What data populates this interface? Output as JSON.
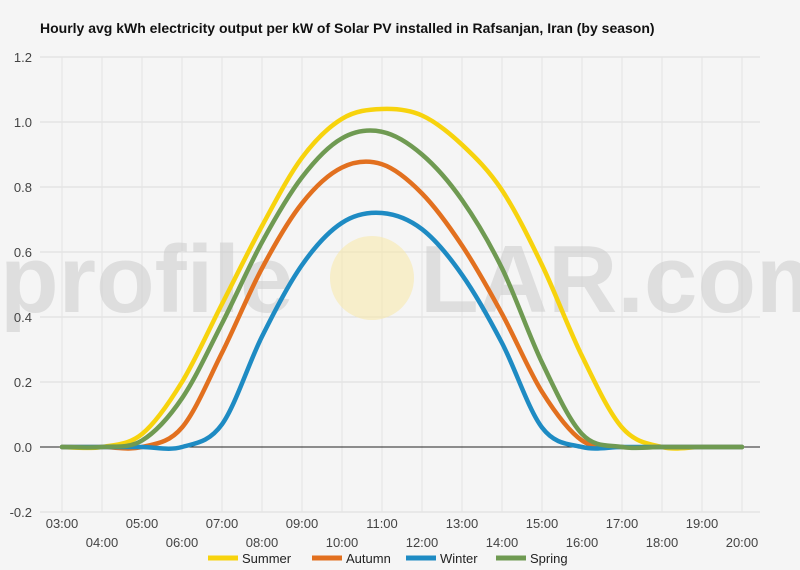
{
  "watermark": {
    "left": "profile",
    "right": "LAR.com"
  },
  "chart_data": {
    "type": "line",
    "title": "Hourly avg kWh electricity output per kW of Solar PV installed in Rafsanjan, Iran (by season)",
    "xlabel": "",
    "ylabel": "",
    "x": [
      "03:00",
      "04:00",
      "05:00",
      "06:00",
      "07:00",
      "08:00",
      "09:00",
      "10:00",
      "11:00",
      "12:00",
      "13:00",
      "14:00",
      "15:00",
      "16:00",
      "17:00",
      "18:00",
      "19:00",
      "20:00"
    ],
    "ylim": [
      -0.2,
      1.2
    ],
    "yticks": [
      1.2,
      1.0,
      0.8,
      0.6,
      0.4,
      0.2,
      0.0,
      -0.2
    ],
    "ytick_labels": [
      "1.2",
      "1.0",
      "0.8",
      "0.6",
      "0.4",
      "0.2",
      "0.0",
      "-0.2"
    ],
    "grid": true,
    "legend_position": "bottom",
    "series": [
      {
        "name": "Summer",
        "color": "#f7d30d",
        "values": [
          0,
          0,
          0.04,
          0.2,
          0.44,
          0.68,
          0.89,
          1.01,
          1.04,
          1.02,
          0.93,
          0.79,
          0.56,
          0.28,
          0.06,
          0,
          0,
          0
        ]
      },
      {
        "name": "Autumn",
        "color": "#e2701f",
        "values": [
          0,
          0,
          0,
          0.06,
          0.29,
          0.55,
          0.75,
          0.86,
          0.87,
          0.78,
          0.62,
          0.41,
          0.17,
          0.02,
          0,
          0,
          0,
          0
        ]
      },
      {
        "name": "Winter",
        "color": "#1e8bc3",
        "values": [
          0,
          0,
          0,
          0,
          0.07,
          0.34,
          0.56,
          0.69,
          0.72,
          0.67,
          0.53,
          0.32,
          0.06,
          0,
          0,
          0,
          0,
          0
        ]
      },
      {
        "name": "Spring",
        "color": "#6f9a52",
        "values": [
          0,
          0,
          0.02,
          0.15,
          0.38,
          0.63,
          0.83,
          0.95,
          0.97,
          0.9,
          0.76,
          0.55,
          0.26,
          0.04,
          0,
          0,
          0,
          0
        ]
      }
    ]
  }
}
